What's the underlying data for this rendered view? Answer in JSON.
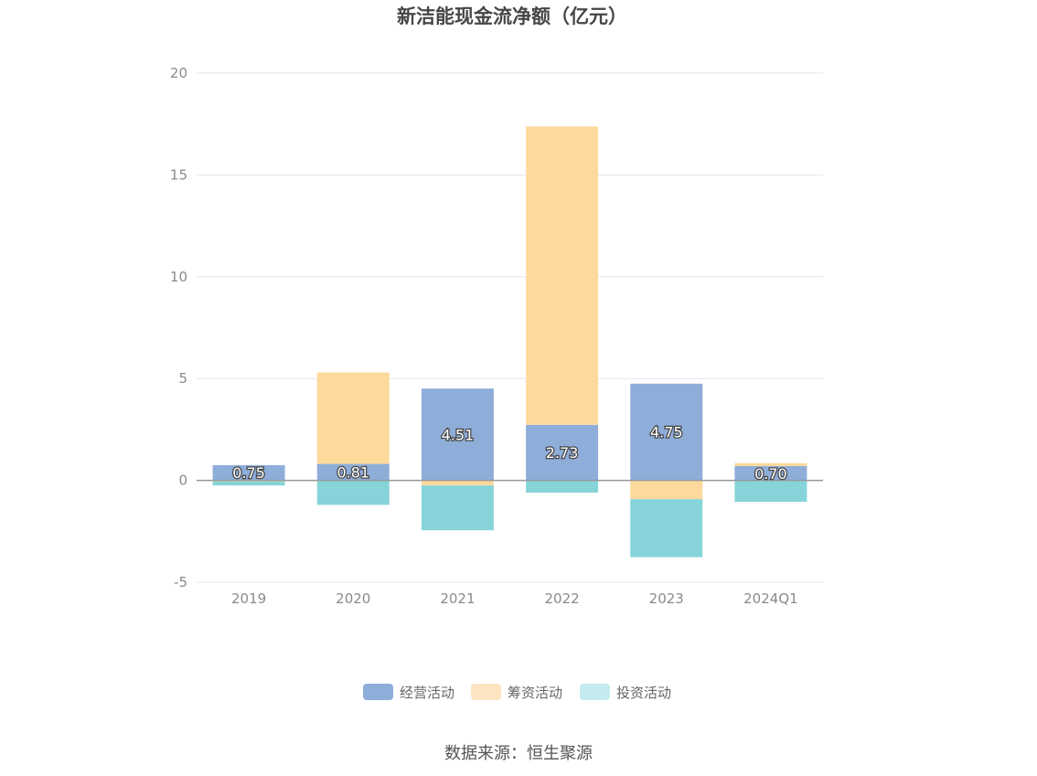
{
  "chart_data": {
    "type": "bar",
    "stacked": true,
    "title": "新洁能现金流净额（亿元）",
    "categories": [
      "2019",
      "2020",
      "2021",
      "2022",
      "2023",
      "2024Q1"
    ],
    "series": [
      {
        "name": "经营活动",
        "color": "#8eadd9",
        "values": [
          0.75,
          0.81,
          4.51,
          2.73,
          4.75,
          0.7
        ]
      },
      {
        "name": "筹资活动",
        "color": "#fdd99c",
        "values": [
          -0.05,
          4.49,
          -0.25,
          14.65,
          -0.92,
          0.15
        ]
      },
      {
        "name": "投资活动",
        "color": "#86d4d9",
        "values": [
          -0.2,
          -1.2,
          -2.2,
          -0.6,
          -2.85,
          -1.05
        ]
      }
    ],
    "data_labels": [
      "0.75",
      "0.81",
      "4.51",
      "2.73",
      "4.75",
      "0.70"
    ],
    "ylim": [
      -5,
      20
    ],
    "yticks": [
      "-5",
      "0",
      "5",
      "10",
      "15",
      "20"
    ],
    "ytick_values": [
      -5,
      0,
      5,
      10,
      15,
      20
    ],
    "grid": true,
    "legend": {
      "position": "bottom",
      "items": [
        "经营活动",
        "筹资活动",
        "投资活动"
      ],
      "colors": [
        "#8eadd9",
        "#fde5c2",
        "#c4ebed"
      ]
    }
  },
  "source_text": "数据来源：恒生聚源"
}
